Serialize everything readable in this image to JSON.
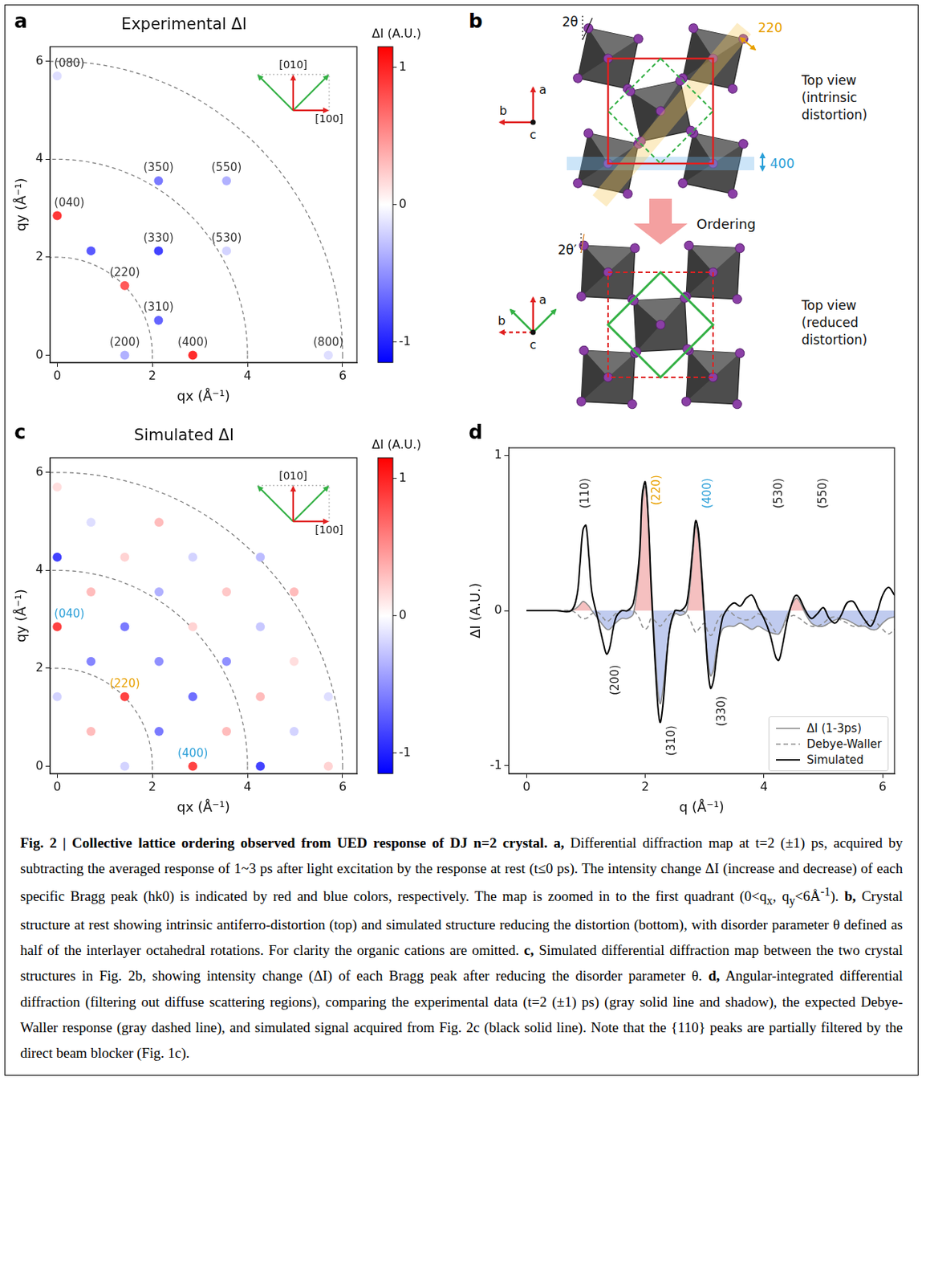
{
  "chart_data": [
    {
      "panel_label": "a",
      "type": "scatter",
      "title": "Experimental ΔI",
      "x_label": "qx (Å⁻¹)",
      "y_label": "qy (Å⁻¹)",
      "xlim": [
        -0.15,
        6.3
      ],
      "ylim": [
        -0.15,
        6.3
      ],
      "xticks": [
        0,
        2,
        4,
        6
      ],
      "yticks": [
        0,
        2,
        4,
        6
      ],
      "grid": false,
      "points": [
        {
          "x": 1.42,
          "y": 0,
          "value": -0.35,
          "label": "(200)"
        },
        {
          "x": 2.85,
          "y": 0,
          "value": 0.95,
          "label": "(400)"
        },
        {
          "x": 5.7,
          "y": 0,
          "value": -0.15,
          "label": "(800)"
        },
        {
          "x": 2.13,
          "y": 0.71,
          "value": -0.7,
          "label": "(310)"
        },
        {
          "x": 1.42,
          "y": 1.42,
          "value": 0.75,
          "label": "(220)"
        },
        {
          "x": 2.13,
          "y": 2.13,
          "value": -0.85,
          "label": "(330)"
        },
        {
          "x": 3.56,
          "y": 2.13,
          "value": -0.2,
          "label": "(530)"
        },
        {
          "x": 0,
          "y": 2.85,
          "value": 0.9,
          "label": "(040)"
        },
        {
          "x": 2.13,
          "y": 3.56,
          "value": -0.6,
          "label": "(350)"
        },
        {
          "x": 3.56,
          "y": 3.56,
          "value": -0.35,
          "label": "(550)"
        },
        {
          "x": 0,
          "y": 5.7,
          "value": -0.15,
          "label": "(080)"
        },
        {
          "x": 0.71,
          "y": 2.13,
          "value": -0.75,
          "label": null
        }
      ],
      "rings": [
        2,
        4,
        6
      ],
      "color_bar": {
        "label": "ΔI (A.U.)",
        "range": [
          -1.15,
          1.15
        ],
        "ticks": [
          -1,
          0,
          1
        ]
      },
      "directions": {
        "vertical": "[010]",
        "horizontal": "[100]"
      }
    },
    {
      "panel_label": "c",
      "type": "scatter",
      "title": "Simulated ΔI",
      "x_label": "qx (Å⁻¹)",
      "y_label": "qy (Å⁻¹)",
      "xlim": [
        -0.15,
        6.3
      ],
      "ylim": [
        -0.15,
        6.3
      ],
      "xticks": [
        0,
        2,
        4,
        6
      ],
      "yticks": [
        0,
        2,
        4,
        6
      ],
      "grid": false,
      "points": [
        {
          "x": 0,
          "y": 1.42,
          "value": -0.2,
          "label": null
        },
        {
          "x": 0,
          "y": 2.85,
          "value": 0.85,
          "label": "(040)",
          "color": "#2a9fd8"
        },
        {
          "x": 0,
          "y": 4.27,
          "value": -0.85,
          "label": null
        },
        {
          "x": 0,
          "y": 5.7,
          "value": 0.15,
          "label": null
        },
        {
          "x": 0.71,
          "y": 0.71,
          "value": 0.3,
          "label": null
        },
        {
          "x": 0.71,
          "y": 2.14,
          "value": -0.55,
          "label": null
        },
        {
          "x": 0.71,
          "y": 3.56,
          "value": 0.3,
          "label": null
        },
        {
          "x": 0.71,
          "y": 4.98,
          "value": -0.15,
          "label": null
        },
        {
          "x": 1.42,
          "y": 0,
          "value": -0.2,
          "label": null
        },
        {
          "x": 1.42,
          "y": 1.42,
          "value": 0.85,
          "label": "(220)",
          "color": "#e8a000"
        },
        {
          "x": 1.42,
          "y": 2.85,
          "value": -0.6,
          "label": null
        },
        {
          "x": 1.42,
          "y": 4.27,
          "value": 0.2,
          "label": null
        },
        {
          "x": 2.14,
          "y": 0.71,
          "value": -0.6,
          "label": null
        },
        {
          "x": 2.14,
          "y": 2.14,
          "value": -0.5,
          "label": null
        },
        {
          "x": 2.14,
          "y": 3.56,
          "value": -0.35,
          "label": null
        },
        {
          "x": 2.14,
          "y": 4.98,
          "value": 0.3,
          "label": null
        },
        {
          "x": 2.85,
          "y": 0,
          "value": 0.85,
          "label": "(400)",
          "color": "#2a9fd8"
        },
        {
          "x": 2.85,
          "y": 1.42,
          "value": -0.65,
          "label": null
        },
        {
          "x": 2.85,
          "y": 2.85,
          "value": 0.2,
          "label": null
        },
        {
          "x": 2.85,
          "y": 4.27,
          "value": -0.2,
          "label": null
        },
        {
          "x": 3.56,
          "y": 0.71,
          "value": 0.3,
          "label": null
        },
        {
          "x": 3.56,
          "y": 2.14,
          "value": -0.5,
          "label": null
        },
        {
          "x": 3.56,
          "y": 3.56,
          "value": 0.25,
          "label": null
        },
        {
          "x": 4.27,
          "y": 0,
          "value": -0.85,
          "label": null
        },
        {
          "x": 4.27,
          "y": 1.42,
          "value": 0.3,
          "label": null
        },
        {
          "x": 4.27,
          "y": 2.85,
          "value": -0.25,
          "label": null
        },
        {
          "x": 4.27,
          "y": 4.27,
          "value": -0.3,
          "label": null
        },
        {
          "x": 4.98,
          "y": 0.71,
          "value": -0.2,
          "label": null
        },
        {
          "x": 4.98,
          "y": 2.14,
          "value": 0.15,
          "label": null
        },
        {
          "x": 4.98,
          "y": 3.56,
          "value": 0.3,
          "label": null
        },
        {
          "x": 5.7,
          "y": 0,
          "value": 0.2,
          "label": null
        },
        {
          "x": 5.7,
          "y": 1.42,
          "value": -0.15,
          "label": null
        }
      ],
      "rings": [
        2,
        4,
        6
      ],
      "color_bar": {
        "label": "ΔI (A.U.)",
        "range": [
          -1.15,
          1.15
        ],
        "ticks": [
          -1,
          0,
          1
        ]
      },
      "directions": {
        "vertical": "[010]",
        "horizontal": "[100]"
      }
    },
    {
      "panel_label": "d",
      "type": "line",
      "x_label": "q (Å⁻¹)",
      "y_label": "ΔI (A.U.)",
      "xlim": [
        -0.3,
        6.2
      ],
      "ylim": [
        -1.05,
        1.05
      ],
      "xticks": [
        0,
        2,
        4,
        6
      ],
      "yticks": [
        -1,
        0,
        1
      ],
      "grid": false,
      "legend": "lower right",
      "x": [
        0,
        0.5,
        0.75,
        0.85,
        0.9,
        0.95,
        1.0,
        1.05,
        1.1,
        1.2,
        1.3,
        1.35,
        1.4,
        1.5,
        1.6,
        1.7,
        1.8,
        1.9,
        1.95,
        2.0,
        2.05,
        2.1,
        2.2,
        2.25,
        2.3,
        2.4,
        2.5,
        2.6,
        2.7,
        2.8,
        2.85,
        2.9,
        3.0,
        3.05,
        3.1,
        3.15,
        3.2,
        3.3,
        3.4,
        3.5,
        3.6,
        3.7,
        3.8,
        3.9,
        4.0,
        4.1,
        4.2,
        4.25,
        4.3,
        4.4,
        4.5,
        4.55,
        4.6,
        4.7,
        4.8,
        4.9,
        5.0,
        5.1,
        5.2,
        5.3,
        5.4,
        5.5,
        5.6,
        5.7,
        5.8,
        5.9,
        6.0,
        6.1,
        6.2
      ],
      "series": [
        {
          "name": "ΔI (1-3ps)",
          "color": "#8c8c8c",
          "line_style": "solid",
          "values": [
            0,
            0,
            0,
            0.02,
            0.04,
            0.06,
            0.05,
            0.03,
            0,
            -0.05,
            -0.1,
            -0.12,
            -0.12,
            -0.08,
            -0.05,
            -0.05,
            -0.02,
            0.3,
            0.7,
            0.8,
            0.6,
            0.2,
            -0.45,
            -0.6,
            -0.5,
            -0.15,
            -0.02,
            -0.03,
            0,
            0.35,
            0.55,
            0.45,
            -0.1,
            -0.3,
            -0.42,
            -0.38,
            -0.25,
            -0.12,
            -0.1,
            -0.1,
            -0.08,
            -0.1,
            -0.12,
            -0.1,
            -0.12,
            -0.14,
            -0.15,
            -0.15,
            -0.12,
            -0.02,
            0.06,
            0.08,
            0.06,
            -0.02,
            -0.08,
            -0.1,
            -0.1,
            -0.08,
            -0.06,
            -0.05,
            -0.06,
            -0.08,
            -0.1,
            -0.1,
            -0.12,
            -0.12,
            -0.08,
            -0.05,
            -0.04
          ]
        },
        {
          "name": "Debye-Waller",
          "color": "#8c8c8c",
          "line_style": "dashed",
          "values": [
            0,
            0,
            0,
            -0.02,
            -0.04,
            -0.05,
            -0.05,
            -0.04,
            -0.02,
            -0.01,
            -0.05,
            -0.07,
            -0.06,
            -0.02,
            0,
            0,
            0,
            -0.05,
            -0.1,
            -0.12,
            -0.1,
            -0.05,
            -0.08,
            -0.1,
            -0.08,
            -0.03,
            0,
            0,
            -0.02,
            -0.1,
            -0.14,
            -0.12,
            -0.08,
            -0.13,
            -0.16,
            -0.14,
            -0.08,
            -0.02,
            0,
            -0.03,
            -0.05,
            -0.06,
            -0.05,
            -0.02,
            -0.04,
            -0.08,
            -0.14,
            -0.15,
            -0.12,
            -0.05,
            -0.03,
            -0.04,
            -0.05,
            -0.08,
            -0.1,
            -0.1,
            -0.08,
            -0.05,
            -0.04,
            -0.06,
            -0.08,
            -0.1,
            -0.1,
            -0.08,
            -0.06,
            -0.08,
            -0.12,
            -0.15,
            -0.12
          ]
        },
        {
          "name": "Simulated",
          "color": "#000000",
          "line_style": "solid",
          "values": [
            0,
            0,
            0,
            0.1,
            0.3,
            0.52,
            0.55,
            0.35,
            0.12,
            -0.05,
            -0.22,
            -0.28,
            -0.24,
            -0.05,
            0,
            0,
            0.05,
            0.35,
            0.75,
            0.83,
            0.6,
            0.15,
            -0.55,
            -0.72,
            -0.6,
            -0.15,
            0,
            0,
            0.05,
            0.4,
            0.58,
            0.5,
            -0.05,
            -0.35,
            -0.5,
            -0.45,
            -0.3,
            -0.05,
            0.02,
            0.05,
            0.03,
            0.08,
            0.1,
            0.02,
            -0.05,
            -0.15,
            -0.3,
            -0.32,
            -0.25,
            -0.05,
            0.08,
            0.1,
            0.08,
            0,
            -0.05,
            -0.02,
            0.02,
            -0.05,
            -0.08,
            -0.03,
            0.05,
            0.06,
            0,
            -0.06,
            -0.1,
            -0.02,
            0.1,
            0.15,
            0.1
          ]
        }
      ],
      "annotations": [
        {
          "text": "(110)",
          "x": 1.0,
          "y": 0.66
        },
        {
          "text": "(220)",
          "x": 2.2,
          "y": 0.68,
          "color": "#e8a000"
        },
        {
          "text": "(400)",
          "x": 3.05,
          "y": 0.66,
          "color": "#2a9fd8"
        },
        {
          "text": "(530)",
          "x": 4.25,
          "y": 0.66
        },
        {
          "text": "(550)",
          "x": 5.0,
          "y": 0.66
        },
        {
          "text": "(200)",
          "x": 1.5,
          "y": -0.35
        },
        {
          "text": "(310)",
          "x": 2.45,
          "y": -0.74
        },
        {
          "text": "(330)",
          "x": 3.3,
          "y": -0.55
        }
      ]
    }
  ],
  "diagram": {
    "panel_label": "b",
    "top": {
      "angle_label": "2θ",
      "planes": [
        "220",
        "400"
      ],
      "view": [
        "Top view",
        "(intrinsic",
        "distortion)"
      ]
    },
    "transition": "Ordering",
    "bottom": {
      "angle_label": "2θ′",
      "view": [
        "Top view",
        "(reduced",
        "distortion)"
      ]
    },
    "axes": [
      "a",
      "b",
      "c"
    ]
  },
  "caption": [
    {
      "text": "Fig. 2 | Collective lattice ordering observed from UED response of DJ n=2 crystal.",
      "bold": true
    },
    {
      "text": " a,",
      "bold": true
    },
    {
      "text": " Differential diffraction map at t=2 (±1) ps, acquired by subtracting the averaged response of 1~3 ps after light excitation by the response at rest (t≤0 ps). The intensity change ΔI (increase and decrease) of each specific Bragg peak (hk0) is indicated by red and blue colors, respectively. The map is zoomed in to the first quadrant (0<q"
    },
    {
      "text": "x",
      "sub": true
    },
    {
      "text": ", q"
    },
    {
      "text": "y",
      "sub": true
    },
    {
      "text": "<6Å"
    },
    {
      "text": "-1",
      "sup": true
    },
    {
      "text": "). "
    },
    {
      "text": "b,",
      "bold": true
    },
    {
      "text": " Crystal structure at rest showing intrinsic antiferro-distortion (top) and simulated structure reducing the distortion (bottom), with disorder parameter θ defined as half of the interlayer octahedral rotations. For clarity the organic cations are omitted. "
    },
    {
      "text": "c,",
      "bold": true
    },
    {
      "text": " Simulated differential diffraction map between the two crystal structures in Fig. 2b, showing intensity change (ΔI) of each Bragg peak after reducing the disorder parameter θ. "
    },
    {
      "text": "d,",
      "bold": true
    },
    {
      "text": " Angular-integrated differential diffraction (filtering out diffuse scattering regions), comparing the experimental data (t=2 (±1) ps) (gray solid line and shadow), the expected Debye-Waller response (gray dashed line), and simulated signal acquired from Fig. 2c (black solid line). Note that the {110} peaks are partially filtered by the direct beam blocker (Fig. 1c)."
    }
  ]
}
